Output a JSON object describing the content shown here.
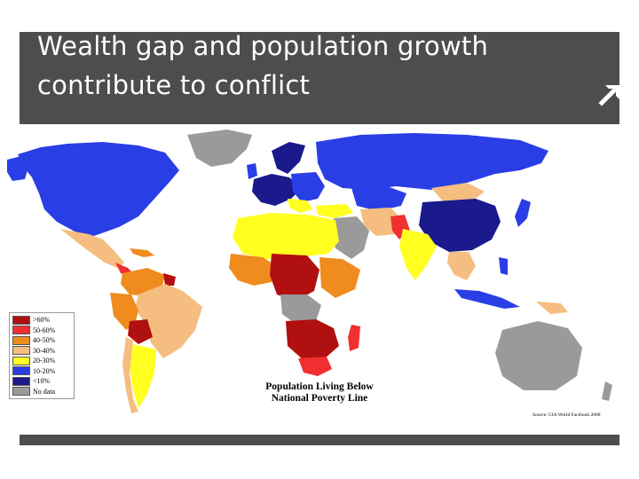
{
  "slide": {
    "title": "Wealth gap and population growth contribute to conflict"
  },
  "map": {
    "caption_line1": "Population Living Below",
    "caption_line2": "National Poverty Line",
    "source": "Source: CIA World Factbook 2008",
    "legend": [
      {
        "label": ">60%",
        "color": "#b01010"
      },
      {
        "label": "50-60%",
        "color": "#f03030"
      },
      {
        "label": "40-50%",
        "color": "#f08c1e"
      },
      {
        "label": "30-40%",
        "color": "#f5bd80"
      },
      {
        "label": "20-30%",
        "color": "#ffff20"
      },
      {
        "label": "10-20%",
        "color": "#2a3ee6"
      },
      {
        "label": "<10%",
        "color": "#1a1a8c"
      },
      {
        "label": "No data",
        "color": "#9a9a9a"
      }
    ]
  },
  "icons": {
    "nav": "arrow-up-right-icon"
  }
}
